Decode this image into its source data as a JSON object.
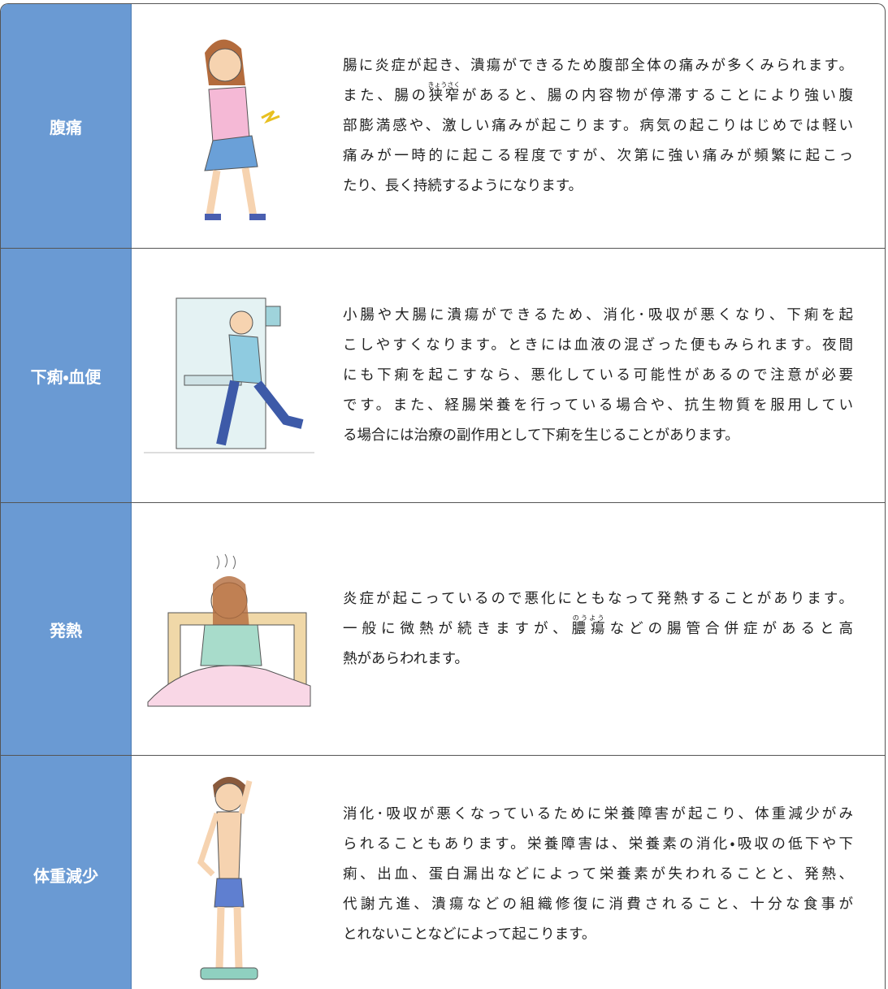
{
  "rows": [
    {
      "label": "腹痛",
      "lines": [
        "腸に炎症が起き、潰瘍ができるため腹部全体の痛みが多くみられます。",
        [
          "また、腸の",
          {
            "base": "狭窄",
            "ruby": "きょうさく"
          },
          "があると、腸の内容物が停滞することにより強い腹"
        ],
        "部膨満感や、激しい痛みが起こります。病気の起こりはじめでは軽い",
        "痛みが一時的に起こる程度ですが、次第に強い痛みが頻繁に起こっ",
        "たり、長く持続するようになります。"
      ]
    },
    {
      "label": "下痢・血便",
      "lines": [
        "小腸や大腸に潰瘍ができるため、消化･吸収が悪くなり、下痢を起",
        "こしやすくなります。ときには血液の混ざった便もみられます。夜間",
        "にも下痢を起こすなら、悪化している可能性があるので注意が必要",
        "です。また、経腸栄養を行っている場合や、抗生物質を服用してい",
        "る場合には治療の副作用として下痢を生じることがあります。"
      ]
    },
    {
      "label": "発熱",
      "lines": [
        "炎症が起こっているので悪化にともなって発熱することがあります。",
        [
          "一般に微熱が続きますが、",
          {
            "base": "膿瘍",
            "ruby": "のうよう"
          },
          "などの腸管合併症があると高"
        ],
        "熱があらわれます。"
      ]
    },
    {
      "label": "体重減少",
      "lines": [
        "消化･吸収が悪くなっているために栄養障害が起こり、体重減少がみ",
        "られることもあります。栄養障害は、栄養素の消化・吸収の低下や下",
        "痢、出血、蛋白漏出などによって栄養素が失われることと、発熱、",
        "代謝亢進、潰瘍などの組織修復に消費されること、十分な食事が",
        "とれないことなどによって起こります。"
      ]
    }
  ]
}
